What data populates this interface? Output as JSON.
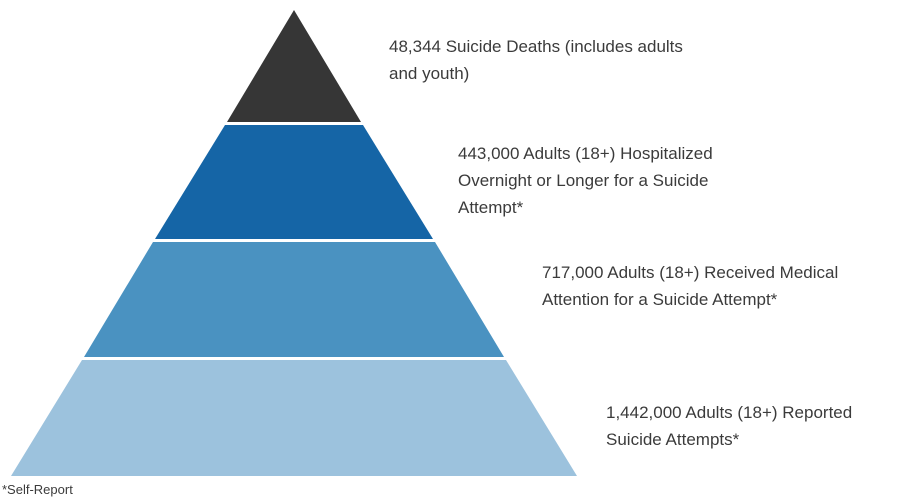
{
  "tiers": [
    {
      "color": "#363636",
      "lines": [
        "48,344 Suicide Deaths (includes adults",
        "and youth)"
      ]
    },
    {
      "color": "#1565a6",
      "lines": [
        "443,000 Adults (18+) Hospitalized",
        "Overnight or Longer for a Suicide",
        "Attempt*"
      ]
    },
    {
      "color": "#4a92c1",
      "lines": [
        "717,000 Adults (18+) Received Medical",
        "Attention for a Suicide Attempt*"
      ]
    },
    {
      "color": "#9cc2dd",
      "lines": [
        "1,442,000 Adults (18+) Reported",
        "Suicide Attempts*"
      ]
    }
  ],
  "footnote": "*Self-Report"
}
